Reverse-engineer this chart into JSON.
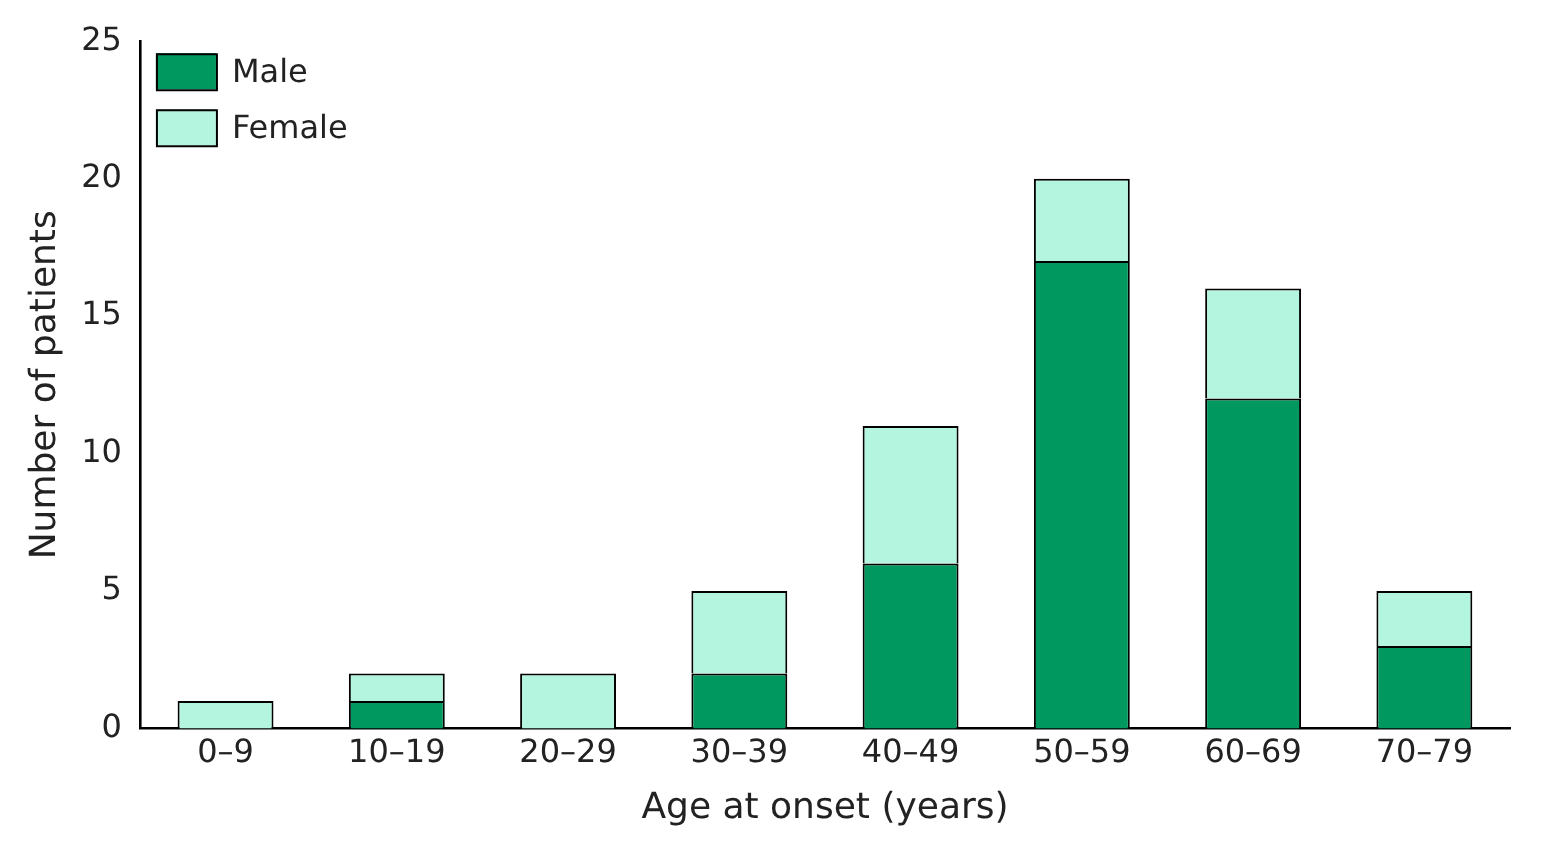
{
  "chart_data": {
    "type": "bar",
    "stacked": true,
    "xlabel": "Age at onset (years)",
    "ylabel": "Number of patients",
    "categories": [
      "0–9",
      "10–19",
      "20–29",
      "30–39",
      "40–49",
      "50–59",
      "60–69",
      "70–79"
    ],
    "series": [
      {
        "name": "Male",
        "color": "#00985f",
        "values": [
          0,
          1,
          0,
          2,
          6,
          17,
          12,
          3
        ]
      },
      {
        "name": "Female",
        "color": "#b3f5df",
        "values": [
          1,
          1,
          2,
          3,
          5,
          3,
          4,
          2
        ]
      }
    ],
    "ylim": [
      0,
      25
    ],
    "yticks": [
      0,
      5,
      10,
      15,
      20,
      25
    ],
    "grid": false,
    "legend": "top left"
  }
}
